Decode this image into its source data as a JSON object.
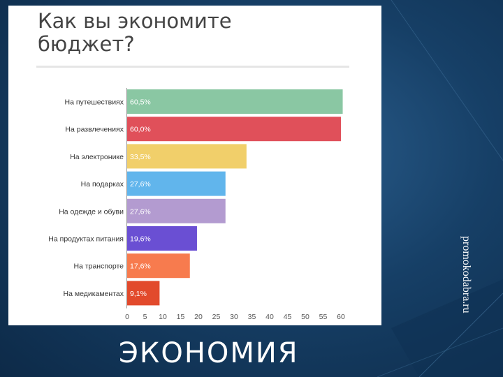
{
  "watermark": "promokodabra.ru",
  "slide_title": "ЭКОНОМИЯ",
  "chart_data": {
    "type": "bar",
    "orientation": "horizontal",
    "title": "Как вы экономите\nбюджет?",
    "xlabel": "",
    "ylabel": "",
    "categories": [
      "На путешествиях",
      "На развлечениях",
      "На электронике",
      "На подарках",
      "На одежде и обуви",
      "На продуктах питания",
      "На транспорте",
      "На медикаментах"
    ],
    "values": [
      60.5,
      60.0,
      33.5,
      27.6,
      27.6,
      19.6,
      17.6,
      9.1
    ],
    "data_labels": [
      "60,5%",
      "60,0%",
      "33,5%",
      "27,6%",
      "27,6%",
      "19,6%",
      "17,6%",
      "9,1%"
    ],
    "colors": [
      "#8ac7a3",
      "#e0505a",
      "#f1cf6a",
      "#61b5ec",
      "#b39bd0",
      "#6a4fd3",
      "#f77b4e",
      "#e24a2c"
    ],
    "xlim": [
      0,
      60
    ],
    "xticks": [
      0,
      5,
      10,
      15,
      20,
      25,
      30,
      35,
      40,
      45,
      50,
      55,
      60
    ],
    "grid": false,
    "legend": "none"
  }
}
